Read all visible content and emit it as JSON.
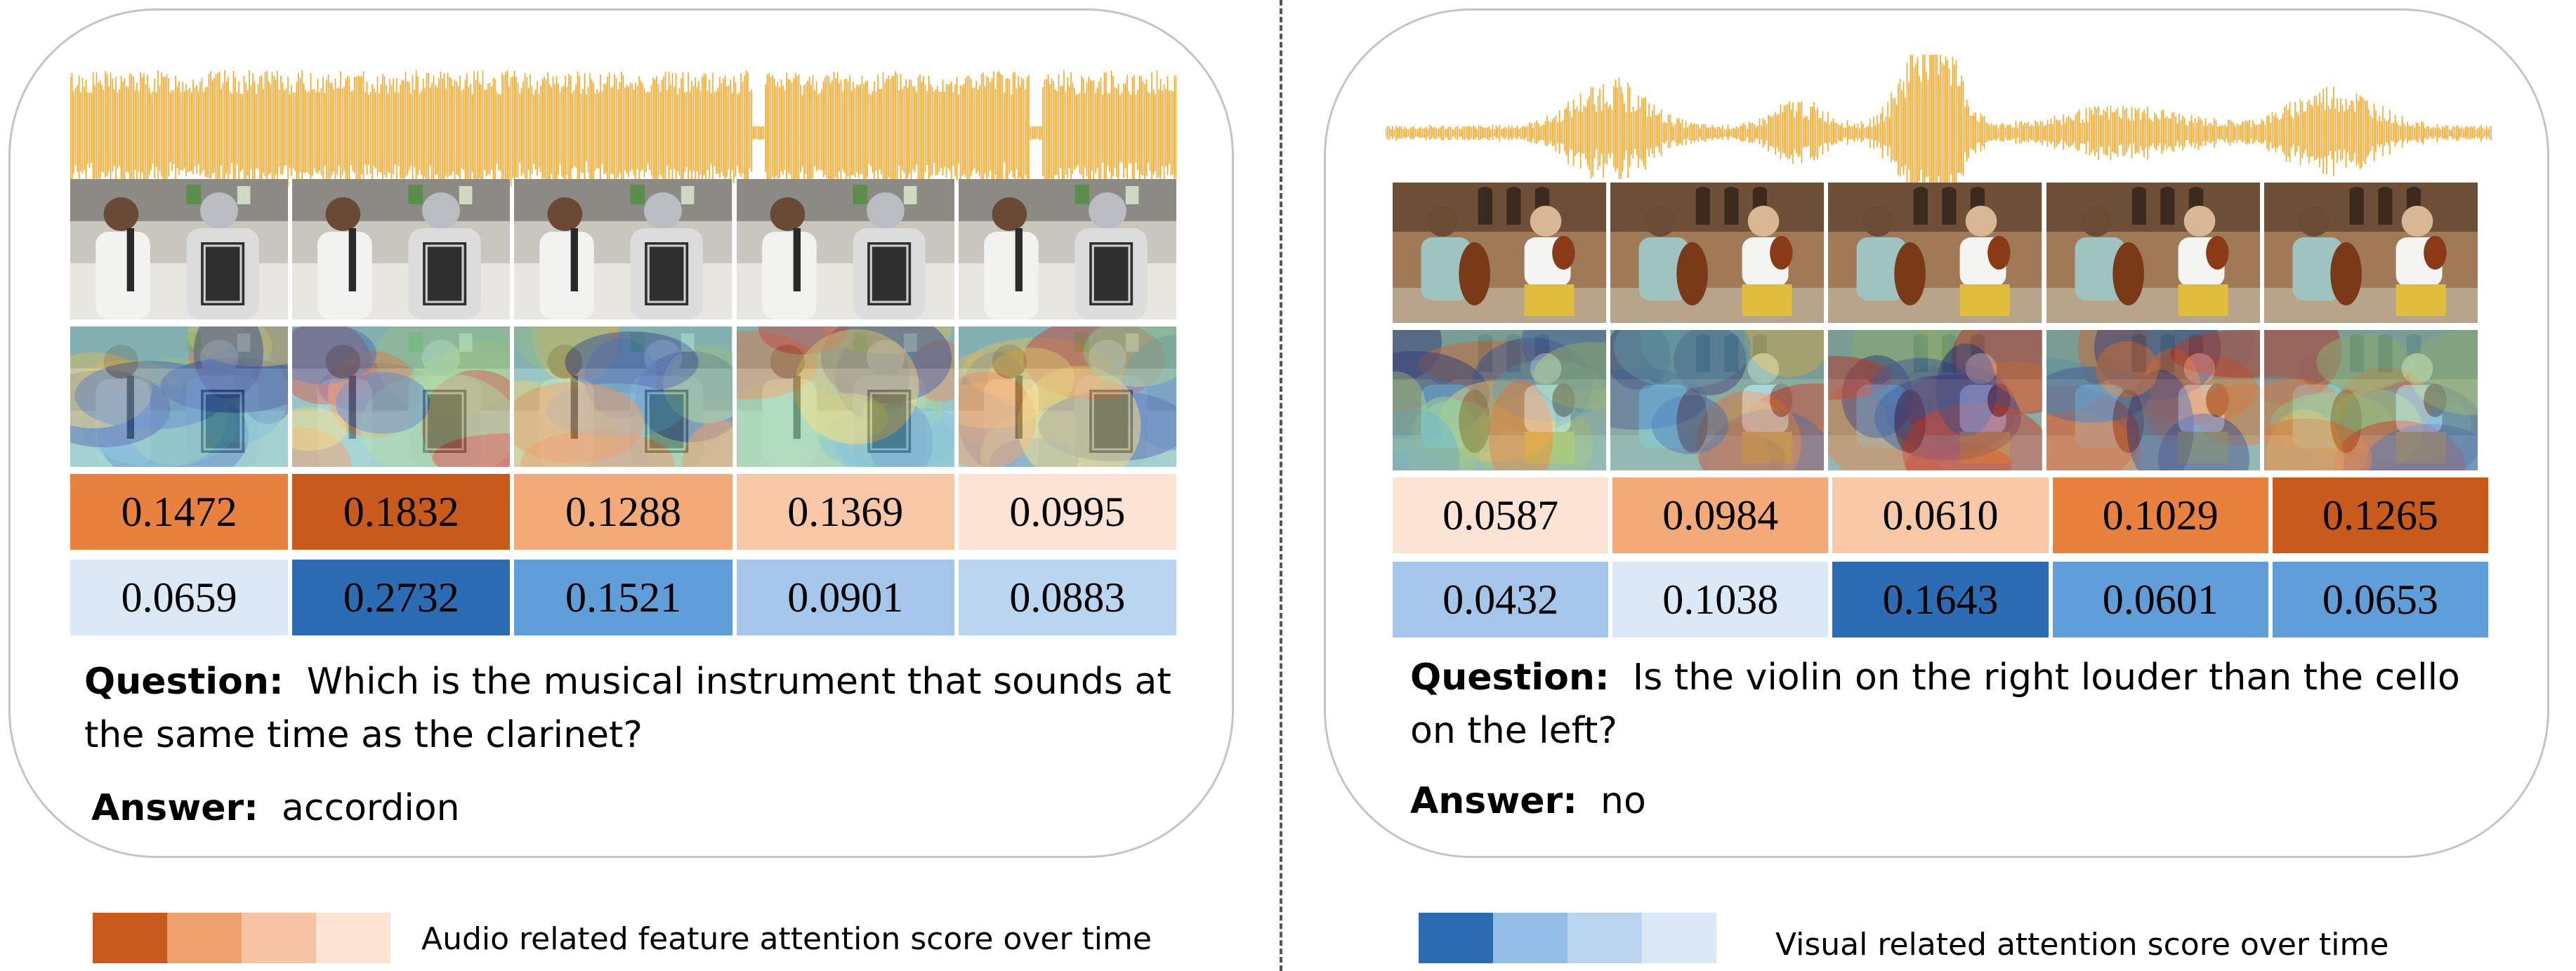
{
  "panels": [
    {
      "audio_scores": [
        "0.1472",
        "0.1832",
        "0.1288",
        "0.1369",
        "0.0995"
      ],
      "audio_colors": [
        "#e8803e",
        "#c85b1c",
        "#f3aa78",
        "#f8c8a6",
        "#fde3d4"
      ],
      "visual_scores": [
        "0.0659",
        "0.2732",
        "0.1521",
        "0.0901",
        "0.0883"
      ],
      "visual_colors": [
        "#dbe8f6",
        "#2b6cb3",
        "#5f9ed8",
        "#a3c6ea",
        "#bad5f0"
      ],
      "question_label": "Question:",
      "question_text": "Which is the musical instrument that sounds at the same time as the clarinet?",
      "answer_label": "Answer:",
      "answer_text": "accordion"
    },
    {
      "audio_scores": [
        "0.0587",
        "0.0984",
        "0.0610",
        "0.1029",
        "0.1265"
      ],
      "audio_colors": [
        "#fde3d4",
        "#f3aa78",
        "#f8c8a6",
        "#e8803e",
        "#c85b1c"
      ],
      "visual_scores": [
        "0.0432",
        "0.1038",
        "0.1643",
        "0.0601",
        "0.0653"
      ],
      "visual_colors": [
        "#a3c6ea",
        "#dbe8f6",
        "#2b6cb3",
        "#5f9ed8",
        "#5f9ed8"
      ],
      "question_label": "Question:",
      "question_text": "Is the violin on the right louder than the cello on the left?",
      "answer_label": "Answer:",
      "answer_text": "no"
    }
  ],
  "legend": {
    "audio_label": "Audio related feature attention score over time",
    "audio_colors": [
      "#c85b1c",
      "#eea06c",
      "#f6c4a4",
      "#fde3d4"
    ],
    "visual_label": "Visual related attention score over time",
    "visual_colors": [
      "#2b6cb3",
      "#93bde6",
      "#bad5f0",
      "#dbe8f6"
    ]
  },
  "colors": {
    "waveform": "#f5a623"
  }
}
